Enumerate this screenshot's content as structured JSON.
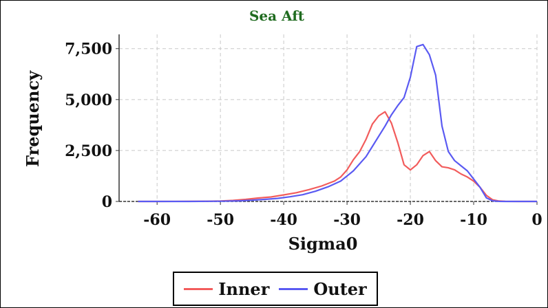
{
  "chart_data": {
    "type": "line",
    "title": "Sea Aft",
    "xlabel": "Sigma0",
    "ylabel": "Frequency",
    "xlim": [
      -66,
      0
    ],
    "ylim": [
      0,
      8200
    ],
    "x_ticks": [
      "-60",
      "-50",
      "-40",
      "-30",
      "-20",
      "-10",
      "0"
    ],
    "x_tick_values": [
      -60,
      -50,
      -40,
      -30,
      -20,
      -10,
      0
    ],
    "y_ticks": [
      "0",
      "2,500",
      "5,000",
      "7,500"
    ],
    "y_tick_values": [
      0,
      2500,
      5000,
      7500
    ],
    "grid": true,
    "legend_position": "bottom",
    "series": [
      {
        "name": "Inner",
        "color": "#f25c5c",
        "x": [
          -63,
          -60,
          -55,
          -52,
          -50,
          -48,
          -46,
          -44,
          -42,
          -40,
          -38,
          -36,
          -34,
          -32,
          -31,
          -30,
          -29,
          -28,
          -27,
          -26,
          -25,
          -24,
          -23,
          -22,
          -21,
          -20,
          -19,
          -18,
          -17,
          -16,
          -15,
          -14,
          -13,
          -12,
          -11,
          -10,
          -9,
          -8,
          -7,
          -6,
          -5,
          -3,
          0
        ],
        "values": [
          0,
          0,
          5,
          10,
          20,
          50,
          100,
          170,
          220,
          320,
          430,
          580,
          760,
          1000,
          1200,
          1550,
          2050,
          2450,
          3050,
          3800,
          4200,
          4400,
          3850,
          2900,
          1800,
          1550,
          1800,
          2250,
          2450,
          2000,
          1700,
          1650,
          1550,
          1350,
          1200,
          1000,
          700,
          300,
          80,
          20,
          5,
          0,
          0
        ]
      },
      {
        "name": "Outer",
        "color": "#5a5af2",
        "x": [
          -63,
          -60,
          -55,
          -50,
          -47,
          -45,
          -43,
          -41,
          -39,
          -37,
          -35,
          -33,
          -31,
          -29,
          -27,
          -26,
          -25,
          -24,
          -23,
          -22,
          -21,
          -20,
          -19,
          -18,
          -17,
          -16,
          -15,
          -14,
          -13,
          -12,
          -11,
          -10,
          -9,
          -8,
          -7,
          -6,
          -5,
          -3,
          0
        ],
        "values": [
          0,
          0,
          0,
          10,
          30,
          60,
          100,
          150,
          230,
          330,
          500,
          720,
          1000,
          1500,
          2200,
          2700,
          3200,
          3700,
          4250,
          4700,
          5100,
          6100,
          7600,
          7700,
          7200,
          6200,
          3700,
          2450,
          2000,
          1750,
          1500,
          1100,
          700,
          180,
          30,
          5,
          0,
          0,
          0
        ]
      }
    ]
  }
}
